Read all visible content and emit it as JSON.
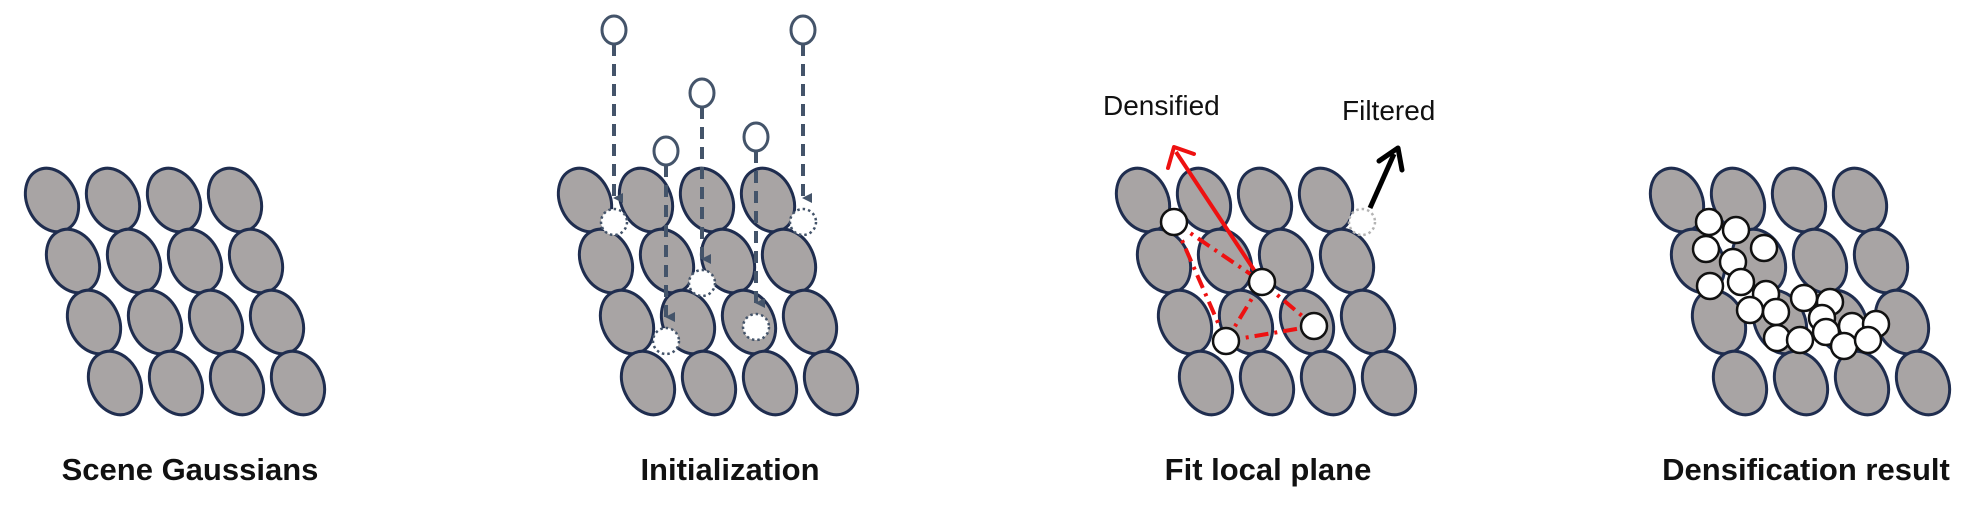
{
  "panels": [
    {
      "caption": "Scene Gaussians"
    },
    {
      "caption": "Initialization"
    },
    {
      "caption": "Fit local plane"
    },
    {
      "caption": "Densification result"
    }
  ],
  "annotations": {
    "densified": "Densified",
    "filtered": "Filtered"
  },
  "colors": {
    "gaussian_fill": "#a8a4a4",
    "gaussian_stroke": "#1f2d4f",
    "init_arrow": "#44546a",
    "plane_fit": "#ee1111",
    "filtered_arrow": "#000000",
    "filtered_point": "#b4b4b4"
  }
}
